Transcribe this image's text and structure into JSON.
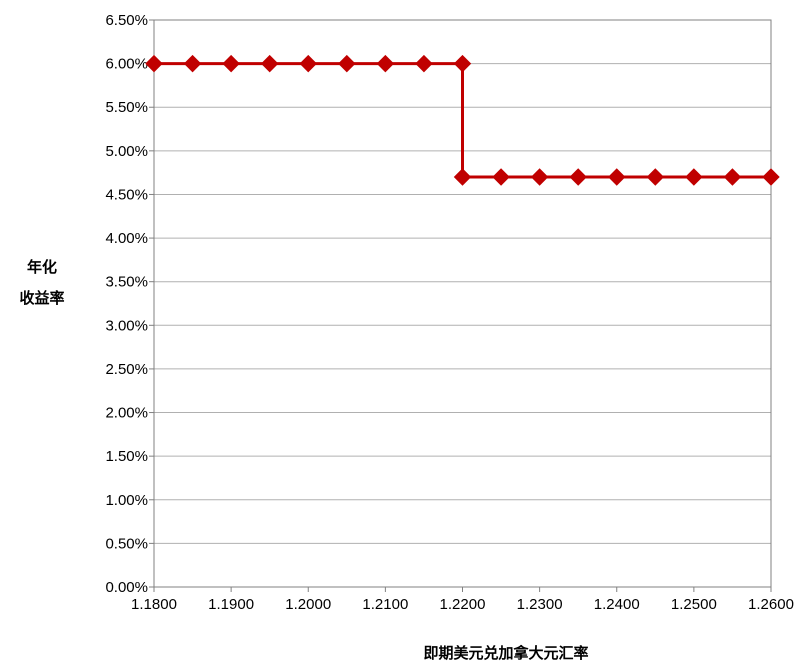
{
  "chart_data": {
    "type": "line",
    "xlabel": "即期美元兑加拿大元汇率",
    "ylabel_lines": [
      "年化",
      "收益率"
    ],
    "x": [
      1.18,
      1.185,
      1.19,
      1.195,
      1.2,
      1.205,
      1.21,
      1.215,
      1.22,
      1.22,
      1.225,
      1.23,
      1.235,
      1.24,
      1.245,
      1.25,
      1.255,
      1.26
    ],
    "series": [
      {
        "values": [
          6.0,
          6.0,
          6.0,
          6.0,
          6.0,
          6.0,
          6.0,
          6.0,
          6.0,
          4.7,
          4.7,
          4.7,
          4.7,
          4.7,
          4.7,
          4.7,
          4.7,
          4.7
        ],
        "color": "#C00000",
        "marker": "diamond"
      }
    ],
    "xlim": [
      1.18,
      1.26
    ],
    "ylim": [
      0,
      6.5
    ],
    "x_ticks": [
      1.18,
      1.19,
      1.2,
      1.21,
      1.22,
      1.23,
      1.24,
      1.25,
      1.26
    ],
    "x_tick_labels": [
      "1.1800",
      "1.1900",
      "1.2000",
      "1.2100",
      "1.2200",
      "1.2300",
      "1.2400",
      "1.2500",
      "1.2600"
    ],
    "y_ticks": [
      0,
      0.5,
      1,
      1.5,
      2,
      2.5,
      3,
      3.5,
      4,
      4.5,
      5,
      5.5,
      6,
      6.5
    ],
    "y_tick_labels": [
      "0.00%",
      "0.50%",
      "1.00%",
      "1.50%",
      "2.00%",
      "2.50%",
      "3.00%",
      "3.50%",
      "4.00%",
      "4.50%",
      "5.00%",
      "5.50%",
      "6.00%",
      "6.50%"
    ],
    "grid": true,
    "gridline_color": "#B0B0B0",
    "legend": "none"
  }
}
